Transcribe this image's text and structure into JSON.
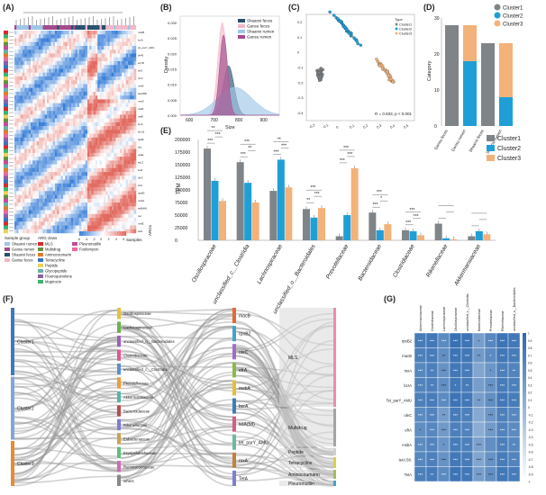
{
  "panels": {
    "A": "(A)",
    "B": "(B)",
    "C": "(C)",
    "D": "(D)",
    "E": "(E)",
    "F": "(F)",
    "G": "(G)"
  },
  "colors": {
    "cluster1": "#7f8488",
    "cluster2": "#1f9fd6",
    "cluster3": "#f2b27a",
    "shaanxi_feces": "#2a4f6e",
    "gansu_feces": "#f0b8c8",
    "shaanxi_rumen": "#9fc6e6",
    "gansu_rumen": "#a24a8c"
  },
  "chart_data": [
    {
      "panel": "A",
      "type": "heatmap",
      "title": "",
      "row_labels": [
        "macB",
        "tetT",
        "bcrA",
        "lnuC",
        "tet_parY_AMU",
        "ermF",
        "tet40",
        "tetQ",
        "ermB",
        "tetW",
        "tetO",
        "lnuB",
        "cfxA",
        "lsaC",
        "mefA",
        "fexA",
        "tetA(58)",
        "tetB(58)",
        "msrD",
        "tetM",
        "mdtK",
        "Cfx_mutA_FOF",
        "vatB",
        "tetX",
        "lnuA",
        "ermG",
        "ermQ",
        "tet44",
        "aadE",
        "ant6",
        "tetL",
        "tetB(P)",
        "vgaE",
        "mphA",
        "tetL2",
        "apmA",
        "sul2",
        "aph3",
        "oleC",
        "tetA(P)",
        "efrA",
        "efrB",
        "rpoB2",
        "rsxA",
        "msbA",
        "tetA(46)",
        "tetB(46)",
        "ermA",
        "cat",
        "sat4",
        "mefE",
        "tetC",
        "tetH"
      ],
      "legend_title": "Sample group",
      "legend_items": [
        "Shaanxi rumen",
        "Gansu rumen",
        "Shaanxi feces",
        "Gansu feces"
      ],
      "arg_legend_title": "ARG class",
      "arg_classes": [
        "MLS",
        "Multidrug",
        "Aminocoumarin",
        "Tetracycline",
        "Peptide",
        "Glycopeptide",
        "Fluoroquinolone",
        "Mupirocin",
        "Pleuromutilin",
        "Fosfomycin"
      ],
      "scale_ticks": [
        "-6",
        "-4",
        "-2",
        "0",
        "2",
        "4",
        "6"
      ],
      "x_label": "Samples",
      "y_label": "ARGs"
    },
    {
      "panel": "B",
      "type": "area",
      "xlabel": "Size",
      "ylabel": "Density",
      "x_ticks": [
        "600",
        "700",
        "800",
        "900"
      ],
      "y_ticks": [
        "0.000",
        "0.005",
        "0.010",
        "0.015",
        "0.020",
        "0.025",
        "0.030"
      ],
      "xlim": [
        560,
        960
      ],
      "ylim": [
        0,
        0.032
      ],
      "series": [
        {
          "name": "Shaanxi feces",
          "mean": 755,
          "sd": 22,
          "peak": 0.016
        },
        {
          "name": "Gansu feces",
          "mean": 730,
          "sd": 18,
          "peak": 0.03
        },
        {
          "name": "Shaanxi rumen",
          "mean": 780,
          "sd": 70,
          "peak": 0.009
        },
        {
          "name": "Gansu rumen",
          "mean": 735,
          "sd": 16,
          "peak": 0.026
        }
      ]
    },
    {
      "panel": "C",
      "type": "scatter",
      "xlabel": "",
      "ylabel": "",
      "x_ticks": [
        "-0.2",
        "-0.1",
        "0",
        "0.1",
        "0.2",
        "0.3",
        "0.4",
        "0.5"
      ],
      "y_ticks": [
        "-0.4",
        "-0.3",
        "-0.2",
        "-0.1",
        "0",
        "0.1",
        "0.2"
      ],
      "xlim": [
        -0.25,
        0.55
      ],
      "ylim": [
        -0.45,
        0.25
      ],
      "legend_title": "Type",
      "legend_items": [
        "Cluster1",
        "Cluster2",
        "Cluster3"
      ],
      "annotation": "R = 0.933, p < 0.001",
      "clusters": [
        {
          "name": "Cluster1",
          "center": [
            -0.15,
            -0.15
          ],
          "spread": [
            0.04,
            0.07
          ],
          "n": 40
        },
        {
          "name": "Cluster2",
          "center": [
            0.05,
            0.15
          ],
          "spread": [
            0.1,
            0.05
          ],
          "n": 45
        },
        {
          "name": "Cluster3",
          "center": [
            0.33,
            -0.12
          ],
          "spread": [
            0.08,
            0.1
          ],
          "n": 35
        }
      ]
    },
    {
      "panel": "D",
      "type": "bar",
      "ylabel": "Category",
      "categories": [
        "Gansu feces",
        "Gansu rumen",
        "Shaanxi feces",
        "Shaanxi rumen"
      ],
      "ylim": [
        0,
        30
      ],
      "y_ticks": [
        "0",
        "10",
        "20",
        "30"
      ],
      "series": [
        {
          "name": "Cluster1",
          "values": [
            28,
            0,
            23,
            0
          ]
        },
        {
          "name": "Cluster2",
          "values": [
            0,
            18,
            0,
            8
          ]
        },
        {
          "name": "Cluster3",
          "values": [
            0,
            10,
            0,
            15
          ]
        }
      ],
      "legend_items": [
        "Cluster1",
        "Cluster2",
        "Cluster3"
      ]
    },
    {
      "panel": "E",
      "type": "bar",
      "ylabel": "TPM",
      "categories": [
        "Oscillospiraceae",
        "unclassified_c__Clostridia",
        "Lachnospiraceae",
        "unclassified_o__Bacteroidales",
        "Prevotellaceae",
        "Bacteroidaceae",
        "Clostridiaceae",
        "Rikenellaceae",
        "Akkermansiaceae"
      ],
      "ylim": [
        0,
        200000
      ],
      "y_ticks": [
        "0",
        "25000",
        "50000",
        "75000",
        "100000",
        "125000",
        "150000",
        "175000",
        "200000"
      ],
      "series": [
        {
          "name": "Cluster1",
          "values": [
            182000,
            155000,
            98000,
            62000,
            8000,
            55000,
            20000,
            33000,
            8000
          ]
        },
        {
          "name": "Cluster2",
          "values": [
            118000,
            114000,
            160000,
            45000,
            50000,
            20000,
            18000,
            4000,
            18000
          ]
        },
        {
          "name": "Cluster3",
          "values": [
            78000,
            75000,
            105000,
            64000,
            143000,
            32000,
            10000,
            2000,
            12000
          ]
        }
      ],
      "significance": [
        "***",
        "***",
        "**",
        "***",
        "**",
        "***",
        "***",
        "***",
        "**",
        "**",
        "***",
        "***",
        "***",
        "***",
        "***",
        "***",
        "*",
        "***",
        "***",
        "***",
        "***"
      ],
      "legend_items": [
        "Cluster1",
        "Cluster2",
        "Cluster3"
      ]
    },
    {
      "panel": "F",
      "type": "diagram",
      "left_nodes": [
        "Cluster1",
        "Cluster2",
        "Cluster3"
      ],
      "middle1_nodes": [
        "Oscillospiraceae",
        "Lachnospiraceae",
        "unclassified_o__Bacteroidales",
        "Clostridiaceae",
        "unclassified_c__Clostridia",
        "Prevotellaceae",
        "Akkermansiaceae",
        "Bacteroidaceae",
        "Rikenellaceae",
        "Eubacteriaceae",
        "Erysipelotrichaceae",
        "Ruminococcaceae",
        "others"
      ],
      "middle2_nodes": [
        "macB",
        "rpoB2",
        "oleC",
        "efrA",
        "msbA",
        "bcrA",
        "tetA(58)",
        "tet_parY_AMU",
        "rsxA",
        "TetA"
      ],
      "right_nodes": [
        "MLS",
        "Multidrug",
        "Peptide",
        "Tetracycline",
        "Aminocoumarin",
        "Pleuromutilin"
      ]
    },
    {
      "panel": "G",
      "type": "heatmap",
      "columns": [
        "Akkermansiaceae",
        "Clostridiaceae",
        "Lachnospiraceae",
        "Oscillospiraceae",
        "unclassified_c__Clostridia",
        "Bacteroidaceae",
        "Prevotellaceae",
        "Rikenellaceae",
        "unclassified_o__Bacteroidales"
      ],
      "rows": [
        "rpoB2",
        "macB",
        "rsxA",
        "bcrA",
        "Tet_parY_AMU",
        "oleC",
        "efrA",
        "msbA",
        "tetA.58.",
        "TetA"
      ],
      "scale_ticks": [
        "1",
        "0.9",
        "0.8",
        "0.7",
        "0.6",
        "0.5",
        "0.4",
        "0.3",
        "0.2",
        "0.1",
        "0",
        "-0.1",
        "-0.2",
        "-0.3",
        "-0.4",
        "-0.5",
        "-0.6",
        "-0.7",
        "-0.8",
        "-0.9",
        "-1"
      ],
      "values": [
        [
          0.75,
          0.8,
          0.55,
          0.9,
          0.85,
          0.3,
          0.6,
          0.85,
          0.8
        ],
        [
          0.7,
          0.75,
          0.5,
          0.85,
          0.8,
          0.35,
          0.55,
          0.8,
          0.75
        ],
        [
          0.6,
          0.7,
          0.45,
          0.8,
          0.75,
          0.2,
          0.4,
          0.7,
          0.65
        ],
        [
          0.65,
          0.7,
          0.5,
          0.8,
          0.75,
          0.3,
          0.45,
          0.75,
          0.7
        ],
        [
          0.7,
          0.75,
          0.55,
          0.85,
          0.8,
          0.3,
          0.5,
          0.8,
          0.75
        ],
        [
          0.55,
          0.65,
          0.3,
          0.75,
          0.7,
          0.15,
          0.4,
          0.7,
          0.6
        ],
        [
          0.5,
          0.6,
          0.35,
          0.7,
          0.65,
          0.1,
          0.35,
          0.65,
          0.55
        ],
        [
          0.55,
          0.65,
          0.4,
          0.75,
          0.7,
          0.25,
          0.5,
          0.7,
          0.6
        ],
        [
          0.6,
          0.7,
          0.45,
          0.8,
          0.75,
          0.2,
          0.45,
          0.75,
          0.65
        ],
        [
          0.7,
          0.75,
          0.55,
          0.85,
          0.8,
          0.3,
          0.5,
          0.8,
          0.75
        ]
      ],
      "stars": [
        [
          "***",
          "***",
          "***",
          "***",
          "***",
          "*",
          "***",
          "***",
          "***"
        ],
        [
          "***",
          "***",
          "**",
          "***",
          "***",
          "**",
          "*",
          "***",
          "***"
        ],
        [
          "***",
          "**",
          "***",
          "***",
          "***",
          "",
          "*",
          "***",
          "**"
        ],
        [
          "***",
          "**",
          "***",
          "*",
          "**",
          "",
          "***",
          "***",
          "***"
        ],
        [
          "***",
          "***",
          "***",
          "***",
          "***",
          "**",
          "***",
          "***",
          "***"
        ],
        [
          "***",
          "***",
          "**",
          "***",
          "***",
          "",
          "***",
          "***",
          "***"
        ],
        [
          "*",
          "***",
          "***",
          "***",
          "***",
          "",
          "***",
          "***",
          "***"
        ],
        [
          "***",
          "***",
          "*",
          "***",
          "***",
          "***",
          "",
          "***",
          "**"
        ],
        [
          "***",
          "***",
          "***",
          "***",
          "***",
          "***",
          "***",
          "***",
          "***"
        ],
        [
          "***",
          "**",
          "***",
          "***",
          "***",
          "***",
          "***",
          "***",
          "***"
        ]
      ]
    }
  ]
}
